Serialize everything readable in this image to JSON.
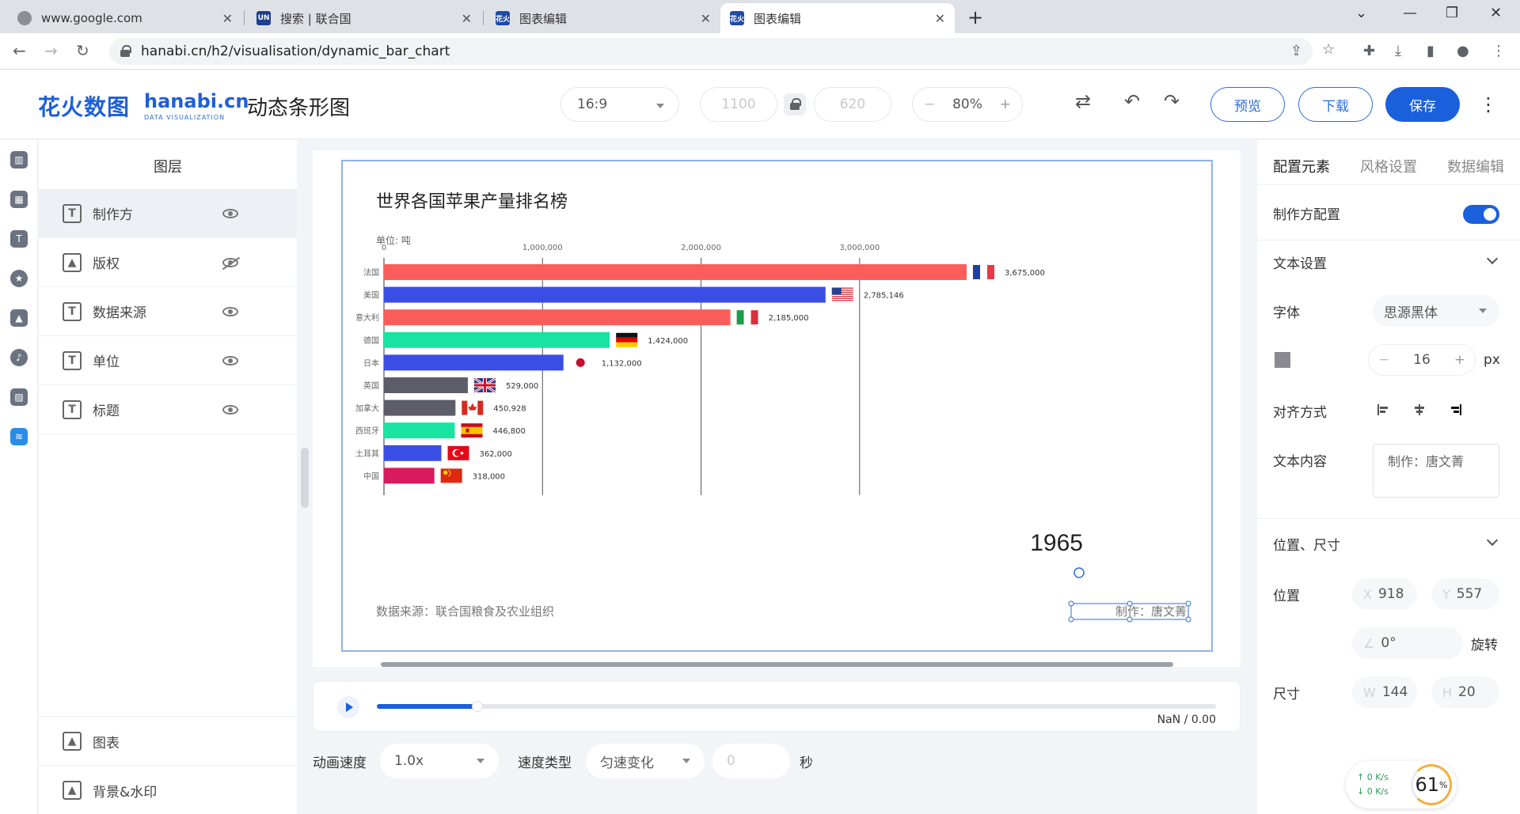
{
  "browser": {
    "tabs": [
      {
        "title": "www.google.com",
        "fav": "globe-icon"
      },
      {
        "title": "搜索 | 联合国",
        "fav": "un-icon"
      },
      {
        "title": "图表编辑",
        "fav": "hanabi-icon"
      },
      {
        "title": "图表编辑",
        "fav": "hanabi-icon"
      }
    ],
    "url": "hanabi.cn/h2/visualisation/dynamic_bar_chart",
    "favicon_text": {
      "un": "UN",
      "hanabi": "花火"
    }
  },
  "header": {
    "logo_cn": "花火数图",
    "logo_en": "hanabi.cn",
    "logo_sub": "DATA VISUALIZATION",
    "title": "动态条形图",
    "ratio": "16:9",
    "width": "1100",
    "height": "620",
    "zoom": "80%",
    "zoom_minus": "−",
    "zoom_plus": "+",
    "preview": "预览",
    "download": "下载",
    "save": "保存"
  },
  "layers": {
    "title": "图层",
    "items": [
      {
        "label": "制作方",
        "visible": true
      },
      {
        "label": "版权",
        "visible": false
      },
      {
        "label": "数据来源",
        "visible": true
      },
      {
        "label": "单位",
        "visible": true
      },
      {
        "label": "标题",
        "visible": true
      }
    ],
    "bottom": [
      "图表",
      "背景&水印"
    ]
  },
  "chart": {
    "title": "世界各国苹果产量排名榜",
    "unit": "单位: 吨",
    "year": "1965",
    "source": "数据来源：联合国粮食及农业组织",
    "maker": "制作：唐文菁"
  },
  "chart_data": {
    "type": "bar",
    "orientation": "horizontal",
    "title": "世界各国苹果产量排名榜",
    "ylabel": "单位: 吨",
    "xlim": [
      0,
      3675000
    ],
    "xticks": [
      0,
      1000000,
      2000000,
      3000000
    ],
    "xtick_labels": [
      "0",
      "1,000,000",
      "2,000,000",
      "3,000,000"
    ],
    "categories": [
      "法国",
      "美国",
      "意大利",
      "德国",
      "日本",
      "英国",
      "加拿大",
      "西班牙",
      "土耳其",
      "中国"
    ],
    "values": [
      3675000,
      2785146,
      2185000,
      1424000,
      1132000,
      529000,
      450928,
      446800,
      362000,
      318000
    ],
    "value_labels": [
      "3,675,000",
      "2,785,146",
      "2,185,000",
      "1,424,000",
      "1,132,000",
      "529,000",
      "450,928",
      "446,800",
      "362,000",
      "318,000"
    ],
    "colors": [
      "#fb5e5a",
      "#3a4ee6",
      "#fb5e5a",
      "#18e3a0",
      "#3a4ee6",
      "#5d5d6a",
      "#5d5d6a",
      "#18e3a0",
      "#3a4ee6",
      "#d81b5e"
    ],
    "flags": [
      "france-flag-icon",
      "usa-flag-icon",
      "italy-flag-icon",
      "germany-flag-icon",
      "japan-flag-icon",
      "uk-flag-icon",
      "canada-flag-icon",
      "spain-flag-icon",
      "turkey-flag-icon",
      "china-flag-icon"
    ],
    "frame_label": "1965"
  },
  "player": {
    "time": "NaN / 0.00",
    "progress": 0.12
  },
  "animation": {
    "speed_label": "动画速度",
    "speed": "1.0x",
    "type_label": "速度类型",
    "type": "匀速变化",
    "delay": "0",
    "unit": "秒"
  },
  "props": {
    "tabs": [
      "配置元素",
      "风格设置",
      "数据编辑"
    ],
    "maker_config": "制作方配置",
    "text_settings": "文本设置",
    "font_label": "字体",
    "font": "思源黑体",
    "font_size": "16",
    "font_unit": "px",
    "minus": "−",
    "plus": "+",
    "align_label": "对齐方式",
    "content_label": "文本内容",
    "content": "制作：唐文菁",
    "pos_size": "位置、尺寸",
    "pos_label": "位置",
    "x_prefix": "X",
    "x": "918",
    "y_prefix": "Y",
    "y": "557",
    "rot_prefix": "∠",
    "rotation": "0°",
    "rotate_label": "旋转",
    "size_label": "尺寸",
    "w_prefix": "W",
    "w": "144",
    "h_prefix": "H",
    "h": "20"
  },
  "net": {
    "up": "0",
    "down": "0",
    "unit": "K/s",
    "percent": "61",
    "percent_sign": "%"
  },
  "colors": {
    "accent": "#1a5fdc",
    "french_red": "#fb5e5a",
    "blue": "#3a4ee6",
    "green": "#18e3a0",
    "gray": "#5d5d6a",
    "crimson": "#d81b5e"
  }
}
